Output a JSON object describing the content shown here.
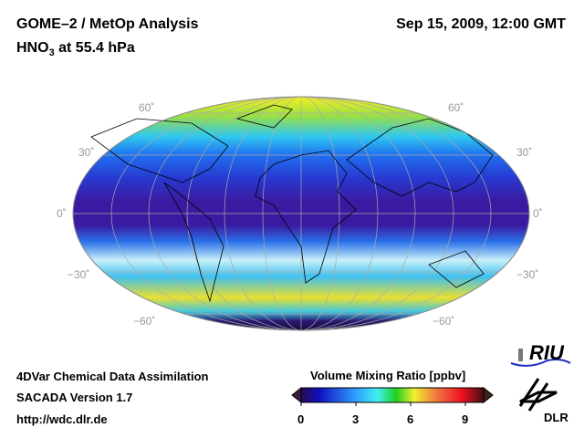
{
  "header": {
    "title": "GOME–2 / MetOp Analysis",
    "species": "HNO",
    "sub": "3",
    "level": " at 55.4 hPa",
    "date": "Sep 15, 2009, 12:00 GMT"
  },
  "map": {
    "lat_labels": [
      "60˚",
      "30˚",
      "0˚",
      "−30˚",
      "−60˚"
    ]
  },
  "footer": {
    "line1": "4DVar Chemical Data Assimilation",
    "line2": "SACADA Version 1.7",
    "line3": "http://wdc.dlr.de"
  },
  "colorbar": {
    "title": "Volume Mixing Ratio [ppbv]",
    "ticks": [
      "0",
      "3",
      "6",
      "9"
    ],
    "min": 0,
    "max": 10
  },
  "logos": {
    "riu": "RIU",
    "dlr": "DLR"
  }
}
